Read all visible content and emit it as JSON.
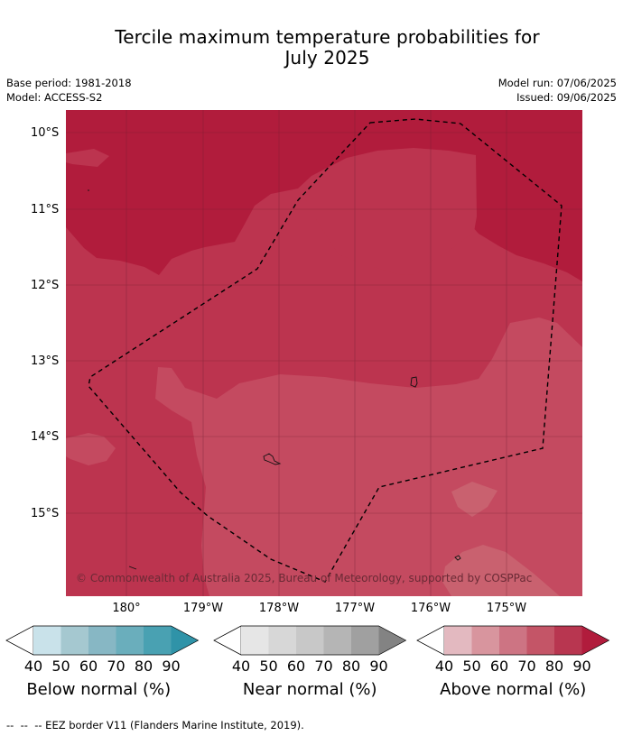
{
  "title": "Tercile maximum temperature probabilities for July 2025",
  "title_line1": "Tercile maximum temperature probabilities for",
  "title_line2": "July 2025",
  "meta_left": {
    "base_period": "Base period: 1981-2018",
    "model": "Model: ACCESS-S2"
  },
  "meta_right": {
    "model_run": "Model run: 07/06/2025",
    "issued": "Issued: 09/06/2025"
  },
  "map": {
    "lat_labels": [
      "10°S",
      "11°S",
      "12°S",
      "13°S",
      "14°S",
      "15°S"
    ],
    "lon_labels": [
      "180°",
      "179°W",
      "178°W",
      "177°W",
      "176°W",
      "175°W"
    ],
    "copyright": "© Commonwealth of Australia 2025, Bureau of Meteorology, supported by COSPPac",
    "colors": {
      "above_90": "#b11c3c",
      "above_80": "#bc344f",
      "above_70": "#c44a60",
      "above_60": "#c9616f"
    }
  },
  "colorbars": [
    {
      "name": "below",
      "title": "Below normal (%)",
      "ticks": [
        "40",
        "50",
        "60",
        "70",
        "80",
        "90"
      ],
      "colors": [
        "#ffffff",
        "#c9e2ea",
        "#a5c8d0",
        "#87b7c4",
        "#6aaebc",
        "#49a1b2",
        "#2f93a8"
      ]
    },
    {
      "name": "near",
      "title": "Near normal (%)",
      "ticks": [
        "40",
        "50",
        "60",
        "70",
        "80",
        "90"
      ],
      "colors": [
        "#ffffff",
        "#e6e6e6",
        "#d7d7d7",
        "#c8c8c8",
        "#b5b5b5",
        "#a0a0a0",
        "#838383"
      ]
    },
    {
      "name": "above",
      "title": "Above normal (%)",
      "ticks": [
        "40",
        "50",
        "60",
        "70",
        "80",
        "90"
      ],
      "colors": [
        "#ffffff",
        "#e3b9c0",
        "#d8959e",
        "#cd7483",
        "#c45567",
        "#b83650",
        "#b11c3c"
      ]
    }
  ],
  "footer": "--  --  -- EEZ border V11 (Flanders Marine Institute, 2019)."
}
